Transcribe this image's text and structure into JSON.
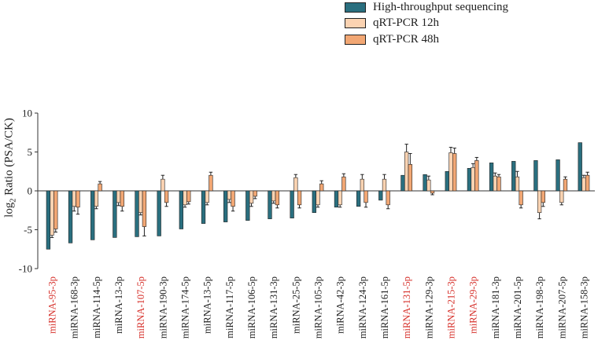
{
  "legend": {
    "items": [
      {
        "label": "High-throughput sequencing",
        "color": "#2a6f7f"
      },
      {
        "label": "qRT-PCR 12h",
        "color": "#fbd3b2"
      },
      {
        "label": "qRT-PCR 48h",
        "color": "#f2a774"
      }
    ]
  },
  "axis": {
    "ylabel_main": "log",
    "ylabel_sub": "2",
    "ylabel_rest": " Ratio (PSA/CK)"
  },
  "chart_data": {
    "type": "bar",
    "ylabel": "log2 Ratio (PSA/CK)",
    "ylim": [
      -10,
      10
    ],
    "yticks": [
      -10,
      -5,
      0,
      5,
      10
    ],
    "highlight_color": "#d6302a",
    "categories": [
      "miRNA-95-3p",
      "miRNA-168-3p",
      "miRNA-114-5p",
      "miRNA-13-3p",
      "miRNA-107-5p",
      "miRNA-190-3p",
      "miRNA-174-5p",
      "miRNA-13-5p",
      "miRNA-117-5p",
      "miRNA-106-5p",
      "miRNA-131-3p",
      "miRNA-25-5p",
      "miRNA-105-3p",
      "miRNA-42-3p",
      "miRNA-124-3p",
      "miRNA-161-5p",
      "miRNA-131-5p",
      "miRNA-129-3p",
      "miRNA-215-3p",
      "miRNA-29-3p",
      "miRNA-181-3p",
      "miRNA-201-5p",
      "miRNA-198-3p",
      "miRNA-207-5p",
      "miRNA-158-3p"
    ],
    "highlighted": [
      "miRNA-95-3p",
      "miRNA-107-5p",
      "miRNA-131-5p",
      "miRNA-215-3p",
      "miRNA-29-3p"
    ],
    "series": [
      {
        "name": "High-throughput sequencing",
        "values": [
          -7.5,
          -6.7,
          -6.3,
          -6.0,
          -5.9,
          -5.8,
          -4.9,
          -4.2,
          -4.0,
          -3.8,
          -3.6,
          -3.5,
          -2.8,
          -2.1,
          -2.0,
          -1.2,
          2.0,
          2.1,
          2.5,
          2.9,
          3.6,
          3.8,
          3.9,
          4.0,
          6.2
        ],
        "errors": [
          0,
          0,
          0,
          0,
          0,
          0,
          0,
          0,
          0,
          0,
          0,
          0,
          0,
          0,
          0,
          0,
          0,
          0,
          0,
          0,
          0,
          0,
          0,
          0,
          0
        ]
      },
      {
        "name": "qRT-PCR 12h",
        "values": [
          -5.7,
          -2.0,
          -2.0,
          -1.5,
          -2.8,
          1.5,
          -1.8,
          -1.5,
          -1.1,
          -1.6,
          -1.3,
          1.7,
          -1.8,
          -1.8,
          1.5,
          1.5,
          5.0,
          1.4,
          4.9,
          3.0,
          1.9,
          1.8,
          -2.8,
          -1.5,
          1.7
        ],
        "errors": [
          0.3,
          0.6,
          0.3,
          0.4,
          0.3,
          0.5,
          0.3,
          0.3,
          0.4,
          0.4,
          0.3,
          0.4,
          0.3,
          0.3,
          0.6,
          0.6,
          1.0,
          0.5,
          0.7,
          0.5,
          0.4,
          0.7,
          0.8,
          0.3,
          0.3
        ]
      },
      {
        "name": "qRT-PCR 48h",
        "values": [
          -4.9,
          -2.1,
          0.9,
          -2.0,
          -4.6,
          -1.5,
          -1.4,
          2.0,
          -2.0,
          -0.7,
          -1.8,
          -1.8,
          0.9,
          1.8,
          -1.5,
          -1.8,
          3.4,
          -0.3,
          4.8,
          3.9,
          1.8,
          -1.8,
          -1.5,
          1.5,
          2.0
        ],
        "errors": [
          0.4,
          0.9,
          0.3,
          0.6,
          1.2,
          0.5,
          0.3,
          0.4,
          0.6,
          0.3,
          0.4,
          0.4,
          0.4,
          0.4,
          0.6,
          0.5,
          1.4,
          0.2,
          0.7,
          0.4,
          0.3,
          0.4,
          0.5,
          0.3,
          0.4
        ]
      }
    ]
  }
}
